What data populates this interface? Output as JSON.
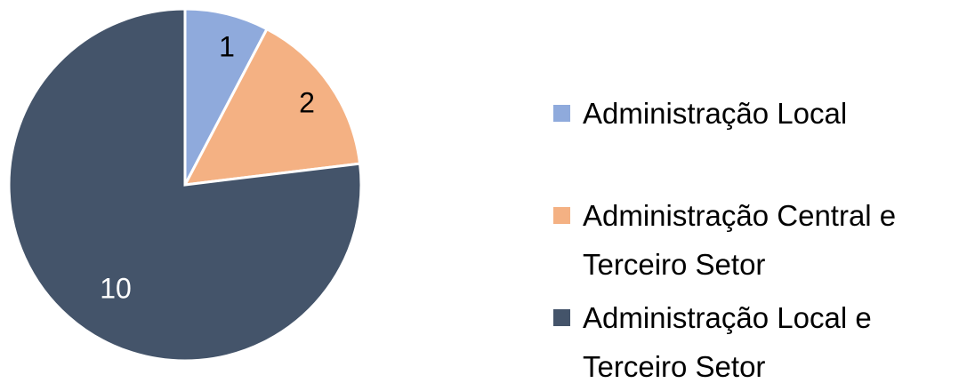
{
  "chart_data": {
    "type": "pie",
    "categories": [
      "Administração Local",
      "Administração Central e Terceiro Setor",
      "Administração Local e Terceiro Setor"
    ],
    "values": [
      1,
      2,
      10
    ],
    "colors": [
      "#8faadc",
      "#f4b183",
      "#44546a"
    ],
    "legend": "right"
  }
}
